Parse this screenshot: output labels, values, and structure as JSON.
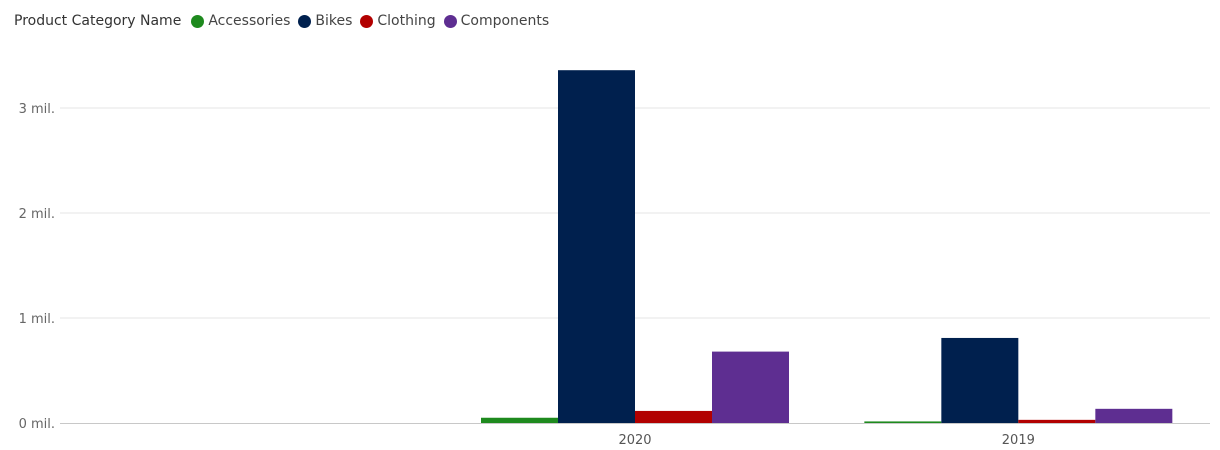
{
  "chart_data": {
    "type": "bar",
    "legend_title": "Product Category Name",
    "legend_position": "top-left",
    "categories": [
      "",
      "2020",
      "2019"
    ],
    "series": [
      {
        "name": "Accessories",
        "color": "#1E8A1E",
        "values": [
          0,
          50000,
          15000
        ]
      },
      {
        "name": "Bikes",
        "color": "#00204E",
        "values": [
          0,
          3360000,
          810000
        ]
      },
      {
        "name": "Clothing",
        "color": "#B20000",
        "values": [
          0,
          115000,
          30000
        ]
      },
      {
        "name": "Components",
        "color": "#5E2E91",
        "values": [
          0,
          680000,
          135000
        ]
      }
    ],
    "y_ticks": [
      {
        "value": 0,
        "label": "0 mil."
      },
      {
        "value": 1000000,
        "label": "1 mil."
      },
      {
        "value": 2000000,
        "label": "2 mil."
      },
      {
        "value": 3000000,
        "label": "3 mil."
      }
    ],
    "ylim": [
      0,
      3600000
    ],
    "grid": true
  }
}
